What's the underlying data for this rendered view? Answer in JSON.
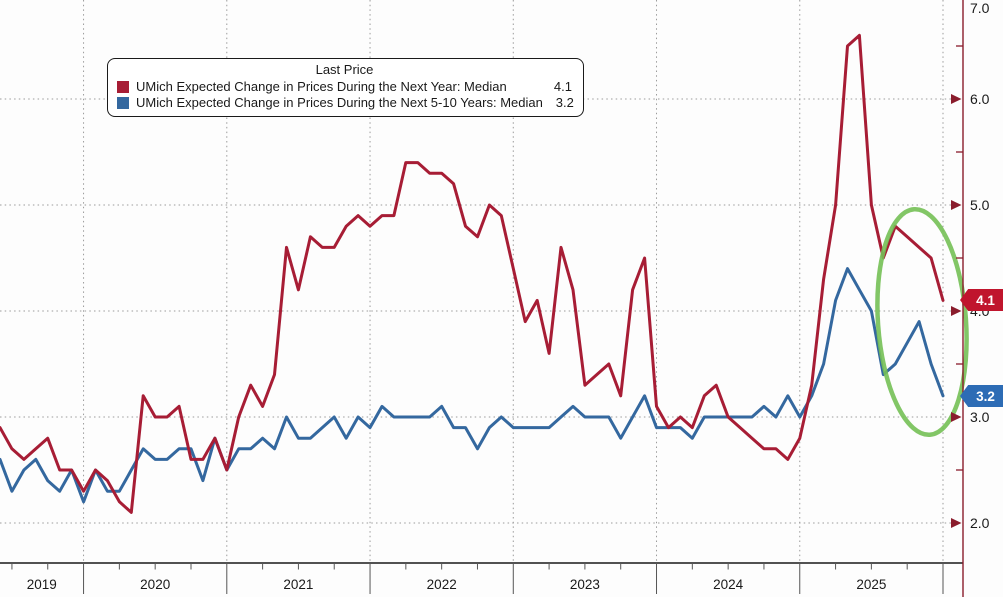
{
  "colors": {
    "series_1yr": "#a71d35",
    "series_510yr": "#34689f",
    "badge_1yr": "#c0152d",
    "badge_510yr": "#2d6cb5",
    "right_axis": "#8a1c2c",
    "bottom_axis": "#1a1a1a",
    "grid": "#9b9b9b",
    "annotation_green": "#74c055",
    "background": "#fdfdfd",
    "text": "#1a1a1a"
  },
  "legend": {
    "title": "Last Price",
    "rows": [
      {
        "label": "UMich Expected Change in Prices During the Next Year: Median",
        "value": "4.1"
      },
      {
        "label": "UMich Expected Change in Prices During the Next 5-10 Years: Median",
        "value": "3.2"
      }
    ]
  },
  "chart_data": {
    "type": "line",
    "title": "",
    "xlabel": "",
    "ylabel": "",
    "x_unit": "month",
    "x_start": "2019-05",
    "x_end": "2025-12",
    "x_year_labels": [
      "2019",
      "2020",
      "2021",
      "2022",
      "2023",
      "2024",
      "2025"
    ],
    "y_ticks": [
      {
        "label": "7.0",
        "value": 7.0
      },
      {
        "label": "6.0",
        "value": 6.0
      },
      {
        "label": "5.0",
        "value": 5.0
      },
      {
        "label": "4.0",
        "value": 4.0
      },
      {
        "label": "3.0",
        "value": 3.0
      },
      {
        "label": "2.0",
        "value": 2.0
      }
    ],
    "ylim": [
      1.62,
      6.93
    ],
    "grid": "dotted",
    "legend_position": "top-left-inside",
    "series": [
      {
        "name": "UMich Expected Change in Prices During the Next Year: Median",
        "color": "#a71d35",
        "last_value": "4.1",
        "values": [
          2.9,
          2.7,
          2.6,
          2.7,
          2.8,
          2.5,
          2.5,
          2.3,
          2.5,
          2.4,
          2.2,
          2.1,
          3.2,
          3.0,
          3.0,
          3.1,
          2.6,
          2.6,
          2.8,
          2.5,
          3.0,
          3.3,
          3.1,
          3.4,
          4.6,
          4.2,
          4.7,
          4.6,
          4.6,
          4.8,
          4.9,
          4.8,
          4.9,
          4.9,
          5.4,
          5.4,
          5.3,
          5.3,
          5.2,
          4.8,
          4.7,
          5.0,
          4.9,
          4.4,
          3.9,
          4.1,
          3.6,
          4.6,
          4.2,
          3.3,
          3.4,
          3.5,
          3.2,
          4.2,
          4.5,
          3.1,
          2.9,
          3.0,
          2.9,
          3.2,
          3.3,
          3.0,
          2.9,
          2.8,
          2.7,
          2.7,
          2.6,
          2.8,
          3.3,
          4.3,
          5.0,
          6.5,
          6.6,
          5.0,
          4.5,
          4.8,
          4.7,
          4.6,
          4.5,
          4.1
        ]
      },
      {
        "name": "UMich Expected Change in Prices During the Next 5-10 Years: Median",
        "color": "#34689f",
        "last_value": "3.2",
        "values": [
          2.6,
          2.3,
          2.5,
          2.6,
          2.4,
          2.3,
          2.5,
          2.2,
          2.5,
          2.3,
          2.3,
          2.5,
          2.7,
          2.6,
          2.6,
          2.7,
          2.7,
          2.4,
          2.8,
          2.5,
          2.7,
          2.7,
          2.8,
          2.7,
          3.0,
          2.8,
          2.8,
          2.9,
          3.0,
          2.8,
          3.0,
          2.9,
          3.1,
          3.0,
          3.0,
          3.0,
          3.0,
          3.1,
          2.9,
          2.9,
          2.7,
          2.9,
          3.0,
          2.9,
          2.9,
          2.9,
          2.9,
          3.0,
          3.1,
          3.0,
          3.0,
          3.0,
          2.8,
          3.0,
          3.2,
          2.9,
          2.9,
          2.9,
          2.8,
          3.0,
          3.0,
          3.0,
          3.0,
          3.0,
          3.1,
          3.0,
          3.2,
          3.0,
          3.2,
          3.5,
          4.1,
          4.4,
          4.2,
          4.0,
          3.4,
          3.5,
          3.7,
          3.9,
          3.5,
          3.2
        ]
      }
    ],
    "annotation": {
      "type": "ellipse",
      "color": "#74c055",
      "note": "green ellipse highlighting the late-2025 decline in both inflation-expectation series"
    }
  }
}
